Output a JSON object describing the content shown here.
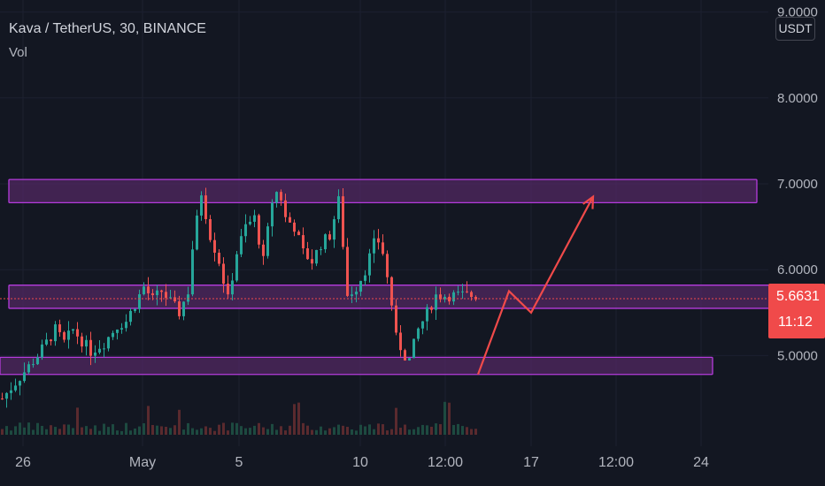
{
  "legend": {
    "title": "Kava / TetherUS, 30, BINANCE",
    "volume_label": "Vol"
  },
  "currency_button": "USDT",
  "price_tag": {
    "price": "5.6631",
    "countdown": "11:12"
  },
  "colors": {
    "background": "#131722",
    "up": "#26a69a",
    "down": "#ef5350",
    "zone_stroke": "#b43bdc",
    "zone_fill": "#5a2a6b",
    "arrow": "#f04a4a"
  },
  "chart_data": {
    "type": "candlestick",
    "title": "Kava / TetherUS, 30, BINANCE",
    "y_axis": {
      "ticks": [
        {
          "value": 9.0,
          "label": "9.0000"
        },
        {
          "value": 8.0,
          "label": "8.0000"
        },
        {
          "value": 7.0,
          "label": "7.0000"
        },
        {
          "value": 6.0,
          "label": "6.0000"
        },
        {
          "value": 5.0,
          "label": "5.0000"
        }
      ],
      "range": [
        4.0,
        9.05
      ]
    },
    "x_axis": {
      "ticks": [
        "26",
        "May",
        "5",
        "10",
        "12:00",
        "17",
        "12:00",
        "24"
      ]
    },
    "last_price": 5.6631,
    "price_path": [
      [
        0,
        4.5
      ],
      [
        4,
        4.75
      ],
      [
        8,
        5.0
      ],
      [
        12,
        5.3
      ],
      [
        14,
        5.15
      ],
      [
        16,
        5.3
      ],
      [
        20,
        5.05
      ],
      [
        23,
        5.15
      ],
      [
        26,
        5.35
      ],
      [
        28,
        5.4
      ],
      [
        30,
        5.6
      ],
      [
        32,
        5.8
      ],
      [
        34,
        5.65
      ],
      [
        36,
        5.75
      ],
      [
        40,
        5.5
      ],
      [
        42,
        5.75
      ],
      [
        43,
        6.25
      ],
      [
        45,
        6.9
      ],
      [
        47,
        6.4
      ],
      [
        49,
        6.1
      ],
      [
        51,
        5.65
      ],
      [
        53,
        6.2
      ],
      [
        55,
        6.5
      ],
      [
        57,
        6.6
      ],
      [
        59,
        6.1
      ],
      [
        61,
        6.8
      ],
      [
        62.5,
        6.95
      ],
      [
        64,
        6.6
      ],
      [
        66,
        6.5
      ],
      [
        68,
        6.2
      ],
      [
        70,
        6.1
      ],
      [
        72,
        6.3
      ],
      [
        74,
        6.4
      ],
      [
        76,
        6.8
      ],
      [
        77,
        6.3
      ],
      [
        78,
        5.7
      ],
      [
        80,
        5.8
      ],
      [
        82,
        6.0
      ],
      [
        84,
        6.3
      ],
      [
        85.5,
        6.35
      ],
      [
        87,
        5.9
      ],
      [
        88,
        5.6
      ],
      [
        89,
        5.2
      ],
      [
        91,
        5.0
      ],
      [
        92,
        4.95
      ],
      [
        94,
        5.3
      ],
      [
        96,
        5.5
      ],
      [
        98,
        5.7
      ]
    ],
    "support_resistance_zones": [
      {
        "from": 6.78,
        "to": 7.05,
        "start": 0,
        "end": 171
      },
      {
        "from": 5.55,
        "to": 5.82,
        "start": 0,
        "end": 182
      },
      {
        "from": 4.78,
        "to": 4.98,
        "start": -2,
        "end": 161
      }
    ],
    "projection": [
      [
        4.78,
        108
      ],
      [
        5.75,
        115
      ],
      [
        5.5,
        120
      ],
      [
        6.85,
        134
      ]
    ]
  }
}
